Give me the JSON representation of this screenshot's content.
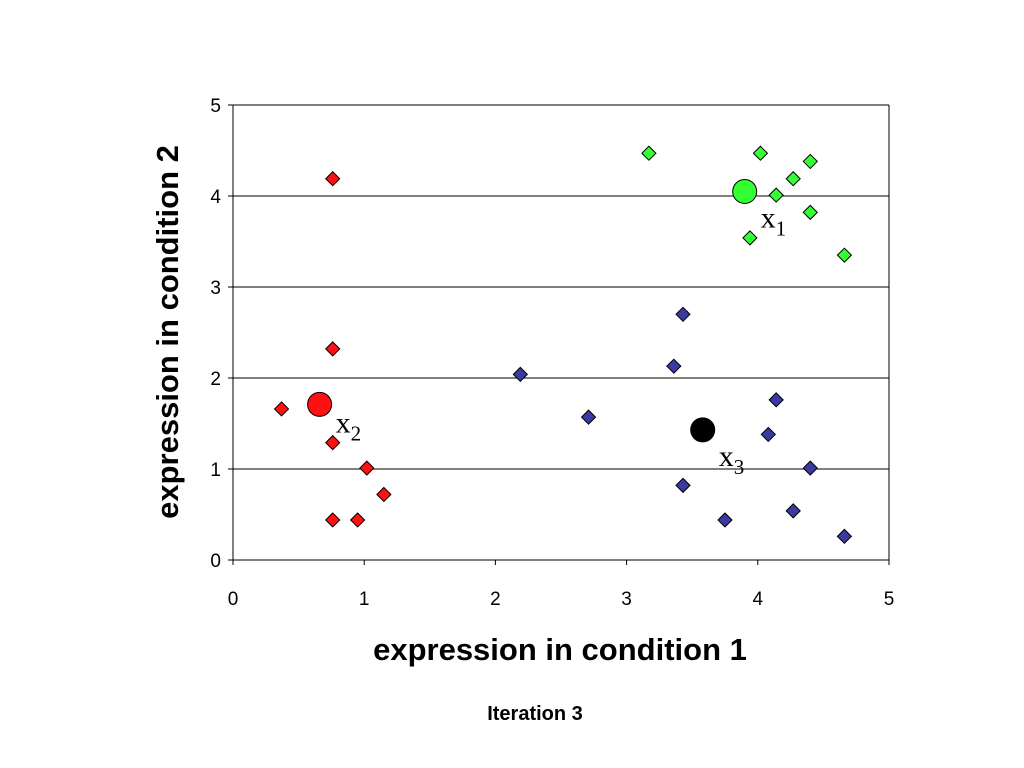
{
  "chart_data": {
    "type": "scatter",
    "xlabel": "expression in condition 1",
    "ylabel": "expression in condition 2",
    "caption": "Iteration 3",
    "xlim": [
      0,
      5
    ],
    "ylim": [
      0,
      5
    ],
    "xticks": [
      "0",
      "1",
      "2",
      "3",
      "4",
      "5"
    ],
    "yticks": [
      "0",
      "1",
      "2",
      "3",
      "4",
      "5"
    ],
    "grid": "horizontal",
    "legend": "none",
    "series": [
      {
        "marker": "diamond",
        "color": "#33ff33",
        "points": [
          [
            3.17,
            4.47
          ],
          [
            4.02,
            4.47
          ],
          [
            4.4,
            4.38
          ],
          [
            4.27,
            4.19
          ],
          [
            4.14,
            4.01
          ],
          [
            4.4,
            3.82
          ],
          [
            3.94,
            3.54
          ],
          [
            4.66,
            3.35
          ]
        ]
      },
      {
        "marker": "diamond",
        "color": "#ff1111",
        "points": [
          [
            0.76,
            4.19
          ],
          [
            0.76,
            2.32
          ],
          [
            0.37,
            1.66
          ],
          [
            0.76,
            1.29
          ],
          [
            1.02,
            1.01
          ],
          [
            1.15,
            0.72
          ],
          [
            0.76,
            0.44
          ],
          [
            0.95,
            0.44
          ]
        ]
      },
      {
        "marker": "diamond",
        "color": "#3a3aa0",
        "points": [
          [
            3.43,
            2.7
          ],
          [
            2.19,
            2.04
          ],
          [
            3.36,
            2.13
          ],
          [
            2.71,
            1.57
          ],
          [
            4.14,
            1.76
          ],
          [
            4.08,
            1.38
          ],
          [
            4.4,
            1.01
          ],
          [
            3.43,
            0.82
          ],
          [
            3.75,
            0.44
          ],
          [
            4.27,
            0.54
          ],
          [
            4.66,
            0.26
          ]
        ]
      }
    ],
    "centroids": [
      {
        "label": "x",
        "sub": "1",
        "color": "#33ff33",
        "x": 3.9,
        "y": 4.05
      },
      {
        "label": "x",
        "sub": "2",
        "color": "#ff1111",
        "x": 0.66,
        "y": 1.71
      },
      {
        "label": "x",
        "sub": "3",
        "color": "#000000",
        "x": 3.58,
        "y": 1.43
      }
    ]
  }
}
